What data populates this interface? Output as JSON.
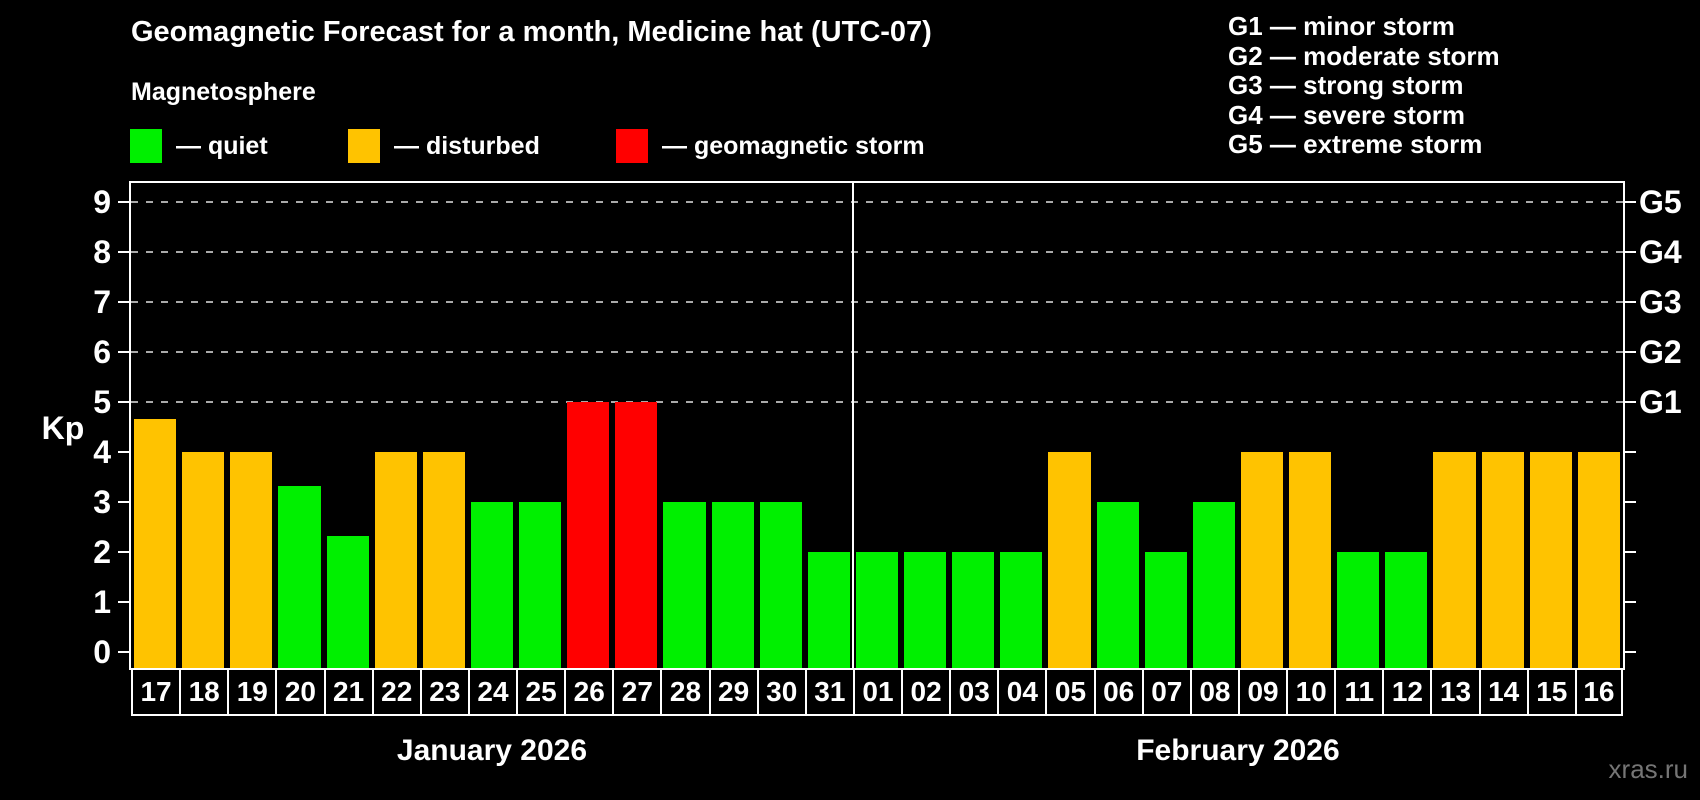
{
  "title": "Geomagnetic Forecast for a month, Medicine hat (UTC-07)",
  "subtitle": "Magnetosphere",
  "legend": {
    "items": [
      {
        "key": "quiet",
        "label": "— quiet",
        "color": "#00f000"
      },
      {
        "key": "disturbed",
        "label": "— disturbed",
        "color": "#ffc300"
      },
      {
        "key": "storm",
        "label": "— geomagnetic storm",
        "color": "#ff0000"
      }
    ]
  },
  "storm_scale": [
    {
      "label": "G1 — minor storm"
    },
    {
      "label": "G2 — moderate storm"
    },
    {
      "label": "G3 — strong storm"
    },
    {
      "label": "G4 — severe storm"
    },
    {
      "label": "G5 — extreme storm"
    }
  ],
  "watermark": "xras.ru",
  "chart_data": {
    "type": "bar",
    "ylabel": "Kp",
    "ylim": [
      0,
      9
    ],
    "yticks": [
      0,
      1,
      2,
      3,
      4,
      5,
      6,
      7,
      8,
      9
    ],
    "gridlines_at": [
      5,
      6,
      7,
      8,
      9
    ],
    "grid": "dashed horizontal at storm levels only",
    "right_axis_labels": [
      {
        "label": "G1",
        "kp": 5
      },
      {
        "label": "G2",
        "kp": 6
      },
      {
        "label": "G3",
        "kp": 7
      },
      {
        "label": "G4",
        "kp": 8
      },
      {
        "label": "G5",
        "kp": 9
      }
    ],
    "months": [
      {
        "label": "January 2026",
        "days": 15
      },
      {
        "label": "February 2026",
        "days": 16
      }
    ],
    "categories": [
      "17",
      "18",
      "19",
      "20",
      "21",
      "22",
      "23",
      "24",
      "25",
      "26",
      "27",
      "28",
      "29",
      "30",
      "31",
      "01",
      "02",
      "03",
      "04",
      "05",
      "06",
      "07",
      "08",
      "09",
      "10",
      "11",
      "12",
      "13",
      "14",
      "15",
      "16"
    ],
    "values": [
      4.67,
      4,
      4,
      3.33,
      2.33,
      4,
      4,
      3,
      3,
      5,
      5,
      3,
      3,
      3,
      2,
      2,
      2,
      2,
      2,
      4,
      3,
      2,
      3,
      4,
      4,
      2,
      2,
      4,
      4,
      4,
      4
    ],
    "statuses": [
      "disturbed",
      "disturbed",
      "disturbed",
      "quiet",
      "quiet",
      "disturbed",
      "disturbed",
      "quiet",
      "quiet",
      "storm",
      "storm",
      "quiet",
      "quiet",
      "quiet",
      "quiet",
      "quiet",
      "quiet",
      "quiet",
      "quiet",
      "disturbed",
      "quiet",
      "quiet",
      "quiet",
      "disturbed",
      "disturbed",
      "quiet",
      "quiet",
      "disturbed",
      "disturbed",
      "disturbed",
      "disturbed"
    ],
    "colors": {
      "quiet": "#00f000",
      "disturbed": "#ffc300",
      "storm": "#ff0000"
    },
    "legend_position": "top-left"
  }
}
